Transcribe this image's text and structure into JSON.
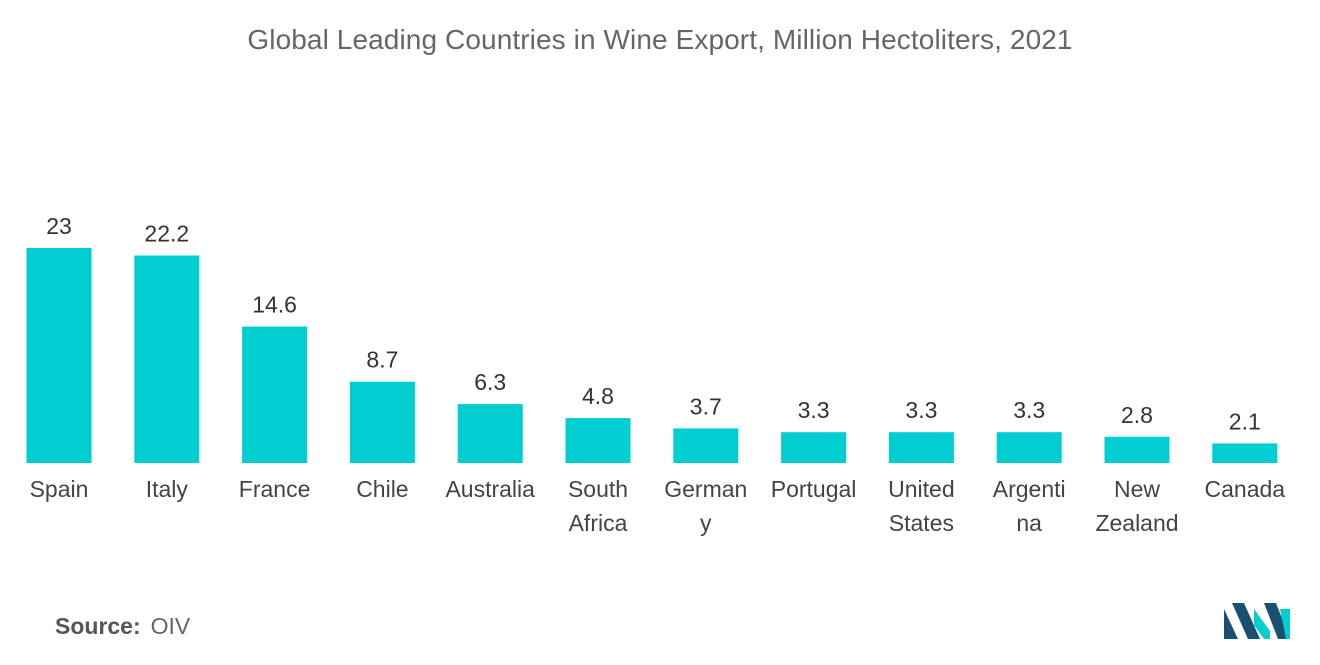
{
  "chart_data": {
    "type": "bar",
    "title": "Global Leading Countries in Wine Export, Million Hectoliters, 2021",
    "xlabel": "",
    "ylabel": "",
    "categories": [
      [
        "Spain"
      ],
      [
        "Italy"
      ],
      [
        "France"
      ],
      [
        "Chile"
      ],
      [
        "Australia"
      ],
      [
        "South",
        "Africa"
      ],
      [
        "German",
        "y"
      ],
      [
        "Portugal"
      ],
      [
        "United",
        "States"
      ],
      [
        "Argenti",
        "na"
      ],
      [
        "New",
        "Zealand"
      ],
      [
        "Canada"
      ]
    ],
    "values": [
      23,
      22.2,
      14.6,
      8.7,
      6.3,
      4.8,
      3.7,
      3.3,
      3.3,
      3.3,
      2.8,
      2.1
    ],
    "value_labels": [
      "23",
      "22.2",
      "14.6",
      "8.7",
      "6.3",
      "4.8",
      "3.7",
      "3.3",
      "3.3",
      "3.3",
      "2.8",
      "2.1"
    ],
    "ylim": [
      0,
      23
    ],
    "grid": false,
    "legend": "none",
    "bar_color": "#00CED1"
  },
  "source": {
    "label": "Source:",
    "value": "OIV"
  },
  "logo": {
    "icon": "mordor-intelligence-logo-icon",
    "colors": [
      "#1B4F72",
      "#00CED1"
    ]
  }
}
